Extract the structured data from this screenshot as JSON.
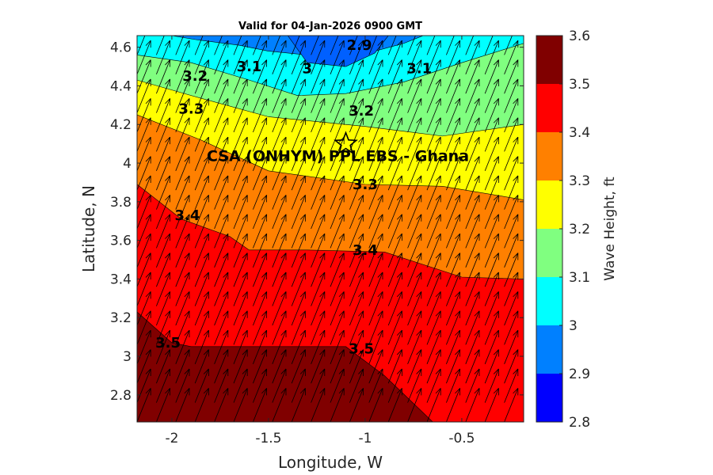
{
  "chart_data": {
    "type": "contour-map",
    "title": "Valid for 04-Jan-2026 0900 GMT",
    "xlabel": "Longitude, W",
    "ylabel": "Latitude, N",
    "xlim": [
      -2.18,
      -0.18
    ],
    "ylim": [
      2.66,
      4.66
    ],
    "x_ticks": [
      -2,
      -1.5,
      -1,
      -0.5
    ],
    "x_tick_labels": [
      "-2",
      "-1.5",
      "-1",
      "-0.5"
    ],
    "y_ticks": [
      2.8,
      3.0,
      3.2,
      3.4,
      3.6,
      3.8,
      4.0,
      4.2,
      4.4,
      4.6
    ],
    "y_tick_labels": [
      "2.8",
      "3",
      "3.2",
      "3.4",
      "3.6",
      "3.8",
      "4",
      "4.2",
      "4.4",
      "4.6"
    ],
    "colorbar": {
      "label": "Wave Height, ft",
      "ticks": [
        "2.8",
        "2.9",
        "3",
        "3.1",
        "3.2",
        "3.3",
        "3.4",
        "3.5",
        "3.6"
      ],
      "levels": [
        2.8,
        2.9,
        3.0,
        3.1,
        3.2,
        3.3,
        3.4,
        3.5,
        3.6
      ],
      "colors": [
        "#0000ff",
        "#0080ff",
        "#00ffff",
        "#80ff80",
        "#ffff00",
        "#ff8000",
        "#ff0000",
        "#800000"
      ]
    },
    "boundaries": [
      {
        "level": 3.0,
        "lon": [
          -2.0,
          -1.88,
          -1.65,
          -1.5,
          -1.3,
          -1.1,
          -0.95,
          -0.8,
          -0.7
        ],
        "lat": [
          4.66,
          4.64,
          4.61,
          4.58,
          4.56,
          4.56,
          4.58,
          4.62,
          4.66
        ]
      },
      {
        "level": 3.1,
        "lon": [
          -2.18,
          -1.9,
          -1.6,
          -1.35,
          -1.1,
          -0.8,
          -0.5,
          -0.18
        ],
        "lat": [
          4.56,
          4.52,
          4.43,
          4.35,
          4.36,
          4.42,
          4.52,
          4.62
        ]
      },
      {
        "level": 3.2,
        "lon": [
          -2.18,
          -1.9,
          -1.5,
          -1.0,
          -0.6,
          -0.18
        ],
        "lat": [
          4.43,
          4.35,
          4.24,
          4.19,
          4.14,
          4.2
        ]
      },
      {
        "level": 3.3,
        "lon": [
          -2.18,
          -1.85,
          -1.5,
          -1.0,
          -0.6,
          -0.18
        ],
        "lat": [
          4.25,
          4.12,
          3.96,
          3.89,
          3.88,
          3.81
        ]
      },
      {
        "level": 3.4,
        "lon": [
          -2.18,
          -1.95,
          -1.7,
          -1.6,
          -1.3,
          -0.9,
          -0.5,
          -0.18
        ],
        "lat": [
          3.89,
          3.71,
          3.62,
          3.55,
          3.55,
          3.54,
          3.41,
          3.4
        ]
      },
      {
        "level": 3.5,
        "lon": [
          -2.18,
          -2.0,
          -1.9,
          -1.5,
          -1.1,
          -0.9,
          -0.65
        ],
        "lat": [
          3.23,
          3.07,
          3.05,
          3.05,
          3.05,
          2.9,
          2.66
        ]
      }
    ],
    "deep_pocket": {
      "level": 2.9,
      "lon": [
        -1.4,
        -1.3,
        -1.1,
        -0.95,
        -0.88
      ],
      "lat": [
        4.66,
        4.52,
        4.5,
        4.57,
        4.66
      ]
    },
    "contour_labels": [
      {
        "text": "2.9",
        "lon": -1.03,
        "lat": 4.61
      },
      {
        "text": "3",
        "lon": -1.3,
        "lat": 4.49
      },
      {
        "text": "3.1",
        "lon": -1.6,
        "lat": 4.5
      },
      {
        "text": "3.1",
        "lon": -0.72,
        "lat": 4.49
      },
      {
        "text": "3.2",
        "lon": -1.88,
        "lat": 4.45
      },
      {
        "text": "3.2",
        "lon": -1.02,
        "lat": 4.27
      },
      {
        "text": "3.3",
        "lon": -1.9,
        "lat": 4.28
      },
      {
        "text": "3.3",
        "lon": -1.0,
        "lat": 3.89
      },
      {
        "text": "3.4",
        "lon": -1.92,
        "lat": 3.73
      },
      {
        "text": "3.4",
        "lon": -1.0,
        "lat": 3.55
      },
      {
        "text": "3.5",
        "lon": -2.02,
        "lat": 3.07
      },
      {
        "text": "3.5",
        "lon": -1.02,
        "lat": 3.04
      }
    ],
    "arrows": {
      "lon_start": -2.18,
      "lat_start": 2.66,
      "step": 0.1,
      "dir_deg": 22,
      "note": "Wind direction arrows toward NNE on a regular grid"
    },
    "site": {
      "name": "CSA (ONHYM) PPL EBS  - Ghana",
      "lon": -1.1,
      "lat": 4.1
    }
  }
}
